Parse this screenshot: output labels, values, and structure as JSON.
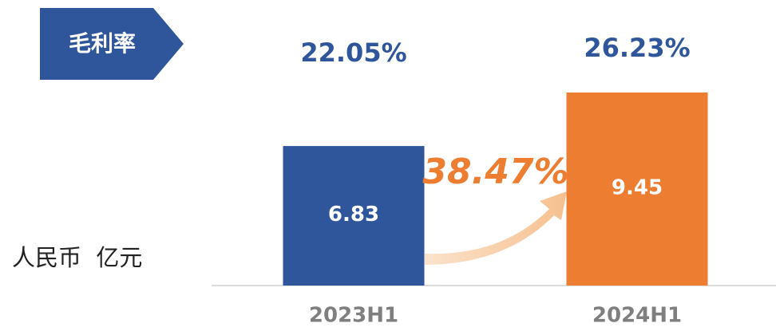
{
  "chart_data": {
    "type": "bar",
    "title": "毛利率",
    "categories": [
      "2023H1",
      "2024H1"
    ],
    "values": [
      6.83,
      9.45
    ],
    "colors": [
      "#2f569b",
      "#ed7d31"
    ],
    "margin_labels": [
      "22.05%",
      "26.23%"
    ],
    "growth_label": "38.47%",
    "unit_label": "人民币  亿元"
  }
}
